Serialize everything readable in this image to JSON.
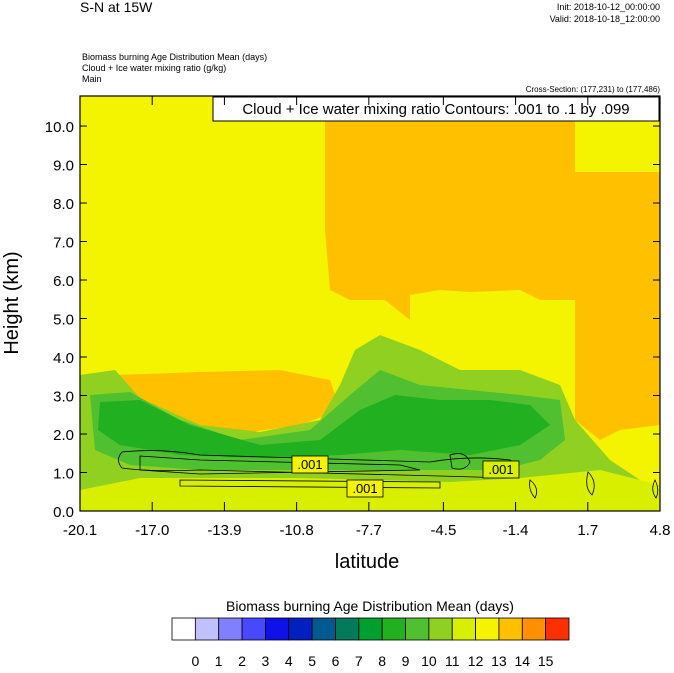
{
  "chart_data": {
    "type": "contour",
    "title": "S-N at 15W",
    "init": "Init: 2018-10-12_00:00:00",
    "valid": "Valid: 2018-10-18_12:00:00",
    "field_titles": [
      "Biomass burning Age Distribution Mean   (days)",
      "Cloud + Ice water mixing ratio   (g/kg)",
      "Main"
    ],
    "cross_section": "Cross-Section: (177,231) to (177,486)",
    "contour_info": "Cloud + Ice water mixing ratio Contours: .001 to .1 by .099",
    "contour_labels": [
      ".001",
      ".001",
      ".001"
    ],
    "x_label": "latitude",
    "y_label": "Height (km)",
    "xlim": [
      -20.1,
      4.8
    ],
    "xticks": [
      -20.1,
      {
        "value": -17.0,
        "label": "-17.0"
      },
      -13.9,
      -10.8,
      -7.7,
      -4.5,
      -1.4,
      1.7,
      4.8
    ],
    "ylim": [
      0,
      10.78
    ],
    "yticks": [
      {
        "value": 0,
        "label": "0.0"
      },
      {
        "value": 1,
        "label": "1.0"
      },
      {
        "value": 2,
        "label": "2.0"
      },
      {
        "value": 3,
        "label": "3.0"
      },
      {
        "value": 4,
        "label": "4.0"
      },
      {
        "value": 5,
        "label": "5.0"
      },
      {
        "value": 6,
        "label": "6.0"
      },
      {
        "value": 7,
        "label": "7.0"
      },
      {
        "value": 8,
        "label": "8.0"
      },
      {
        "value": 9,
        "label": "9.0"
      },
      {
        "value": 10,
        "label": "10.0"
      }
    ],
    "colorbar": {
      "title": "Biomass burning Age Distribution Mean  (days)",
      "colors": [
        "#ffffff",
        "#c0c0ff",
        "#8080ff",
        "#4848ff",
        "#1010e8",
        "#0020c0",
        "#005a90",
        "#007a58",
        "#00a030",
        "#20b020",
        "#50c030",
        "#90d020",
        "#d8f000",
        "#f4f400",
        "#ffc000",
        "#ff9000",
        "#ff3000"
      ],
      "labels": [
        0,
        1,
        2,
        3,
        4,
        5,
        6,
        7,
        8,
        9,
        10,
        11,
        12,
        13,
        14,
        15
      ]
    }
  }
}
